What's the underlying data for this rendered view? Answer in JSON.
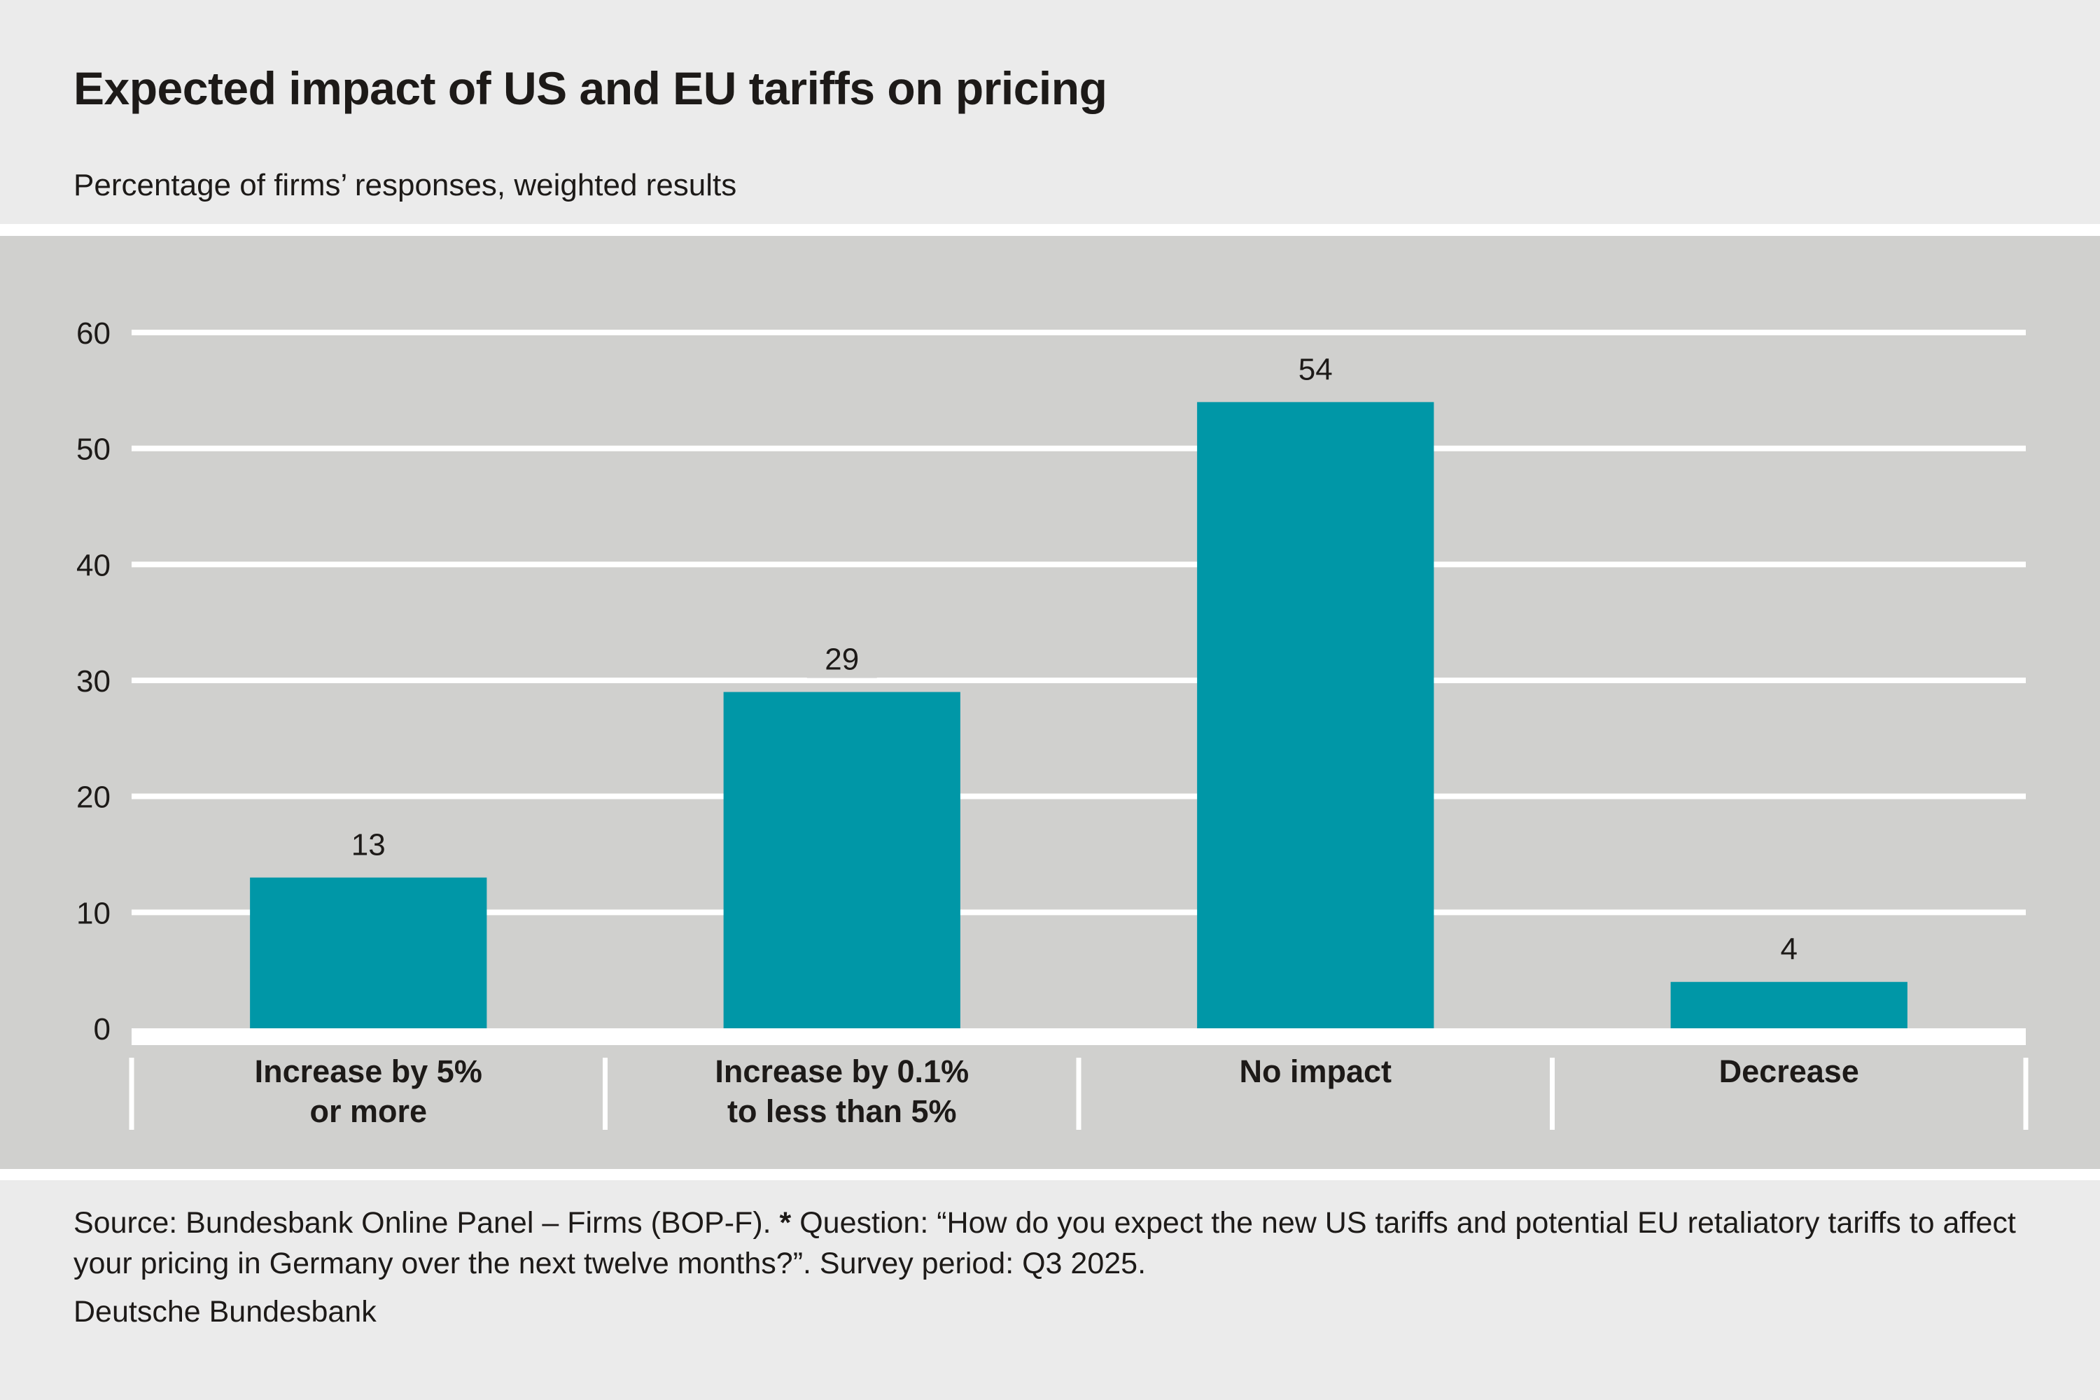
{
  "header": {
    "title": "Expected impact of US and EU tariffs on pricing",
    "subtitle": "Percentage of firms’ responses, weighted results"
  },
  "colors": {
    "bar": "#0097a7",
    "plot_background": "#d0d0ce",
    "page_background": "#ebebeb",
    "gridline": "#ffffff",
    "text": "#1d1a18"
  },
  "chart_data": {
    "type": "bar",
    "title": "Expected impact of US and EU tariffs on pricing",
    "subtitle": "Percentage of firms’ responses, weighted results",
    "xlabel": "",
    "ylabel": "",
    "categories": [
      [
        "Increase by 5%",
        "or more"
      ],
      [
        "Increase by 0.1%",
        "to less than 5%"
      ],
      [
        "No impact"
      ],
      [
        "Decrease"
      ]
    ],
    "category_names": [
      "Increase by 5% or more",
      "Increase by 0.1% to less than 5%",
      "No impact",
      "Decrease"
    ],
    "values": [
      13,
      29,
      54,
      4
    ],
    "data_labels": [
      "13",
      "29",
      "54",
      "4"
    ],
    "ylim": [
      0,
      60
    ],
    "yticks": [
      0,
      10,
      20,
      30,
      40,
      50,
      60
    ],
    "ytick_labels": [
      "0",
      "10",
      "20",
      "30",
      "40",
      "50",
      "60"
    ],
    "grid": true,
    "legend": "none"
  },
  "footer": {
    "source_prefix": "Source: Bundesbank Online Panel – Firms (BOP-F).",
    "star": "*",
    "question": "Question: “How do you expect the new US tariffs and potential EU retaliatory tariffs to affect your pricing in Germany over the next twelve months?”. Survey period: Q3 2025.",
    "credit": "Deutsche Bundesbank"
  }
}
